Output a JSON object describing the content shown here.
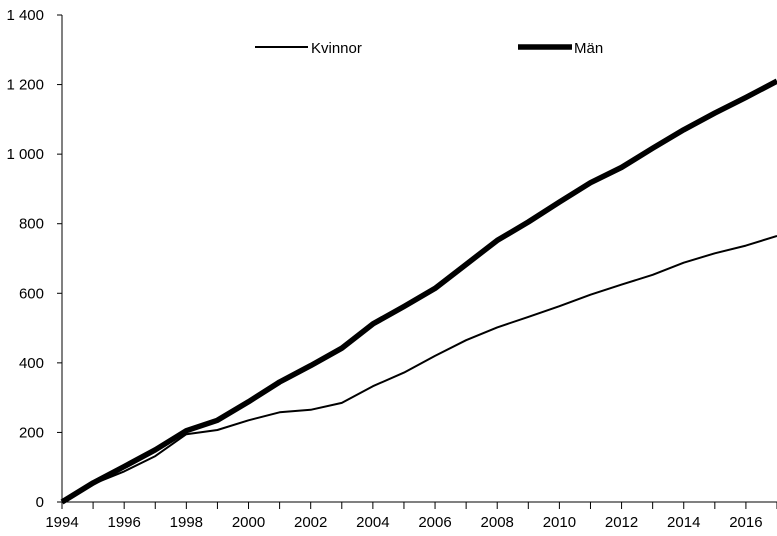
{
  "chart_data": {
    "type": "line",
    "title": "",
    "xlabel": "",
    "ylabel": "",
    "x": [
      1994,
      1995,
      1996,
      1997,
      1998,
      1999,
      2000,
      2001,
      2002,
      2003,
      2004,
      2005,
      2006,
      2007,
      2008,
      2009,
      2010,
      2011,
      2012,
      2013,
      2014,
      2015,
      2016,
      2017
    ],
    "xlim": [
      1994,
      2017
    ],
    "ylim": [
      0,
      1400
    ],
    "x_ticks": [
      1994,
      1996,
      1998,
      2000,
      2002,
      2004,
      2006,
      2008,
      2010,
      2012,
      2014,
      2016
    ],
    "x_tick_labels": [
      "1994",
      "1996",
      "1998",
      "2000",
      "2002",
      "2004",
      "2006",
      "2008",
      "2010",
      "2012",
      "2014",
      "2016"
    ],
    "y_ticks": [
      0,
      200,
      400,
      600,
      800,
      1000,
      1200,
      1400
    ],
    "y_tick_labels": [
      "0",
      "200",
      "400",
      "600",
      "800",
      "1 000",
      "1 200",
      "1 400"
    ],
    "grid": false,
    "legend_position": "top",
    "series": [
      {
        "name": "Kvinnor",
        "color": "#000000",
        "values": [
          0,
          52,
          88,
          132,
          195,
          207,
          235,
          258,
          265,
          285,
          333,
          372,
          420,
          465,
          502,
          532,
          563,
          596,
          625,
          653,
          688,
          715,
          737,
          765
        ]
      },
      {
        "name": "Män",
        "color": "#000000",
        "values": [
          0,
          55,
          102,
          150,
          205,
          235,
          288,
          345,
          392,
          442,
          512,
          562,
          614,
          683,
          752,
          805,
          862,
          918,
          962,
          1017,
          1070,
          1118,
          1163,
          1210
        ]
      }
    ]
  }
}
